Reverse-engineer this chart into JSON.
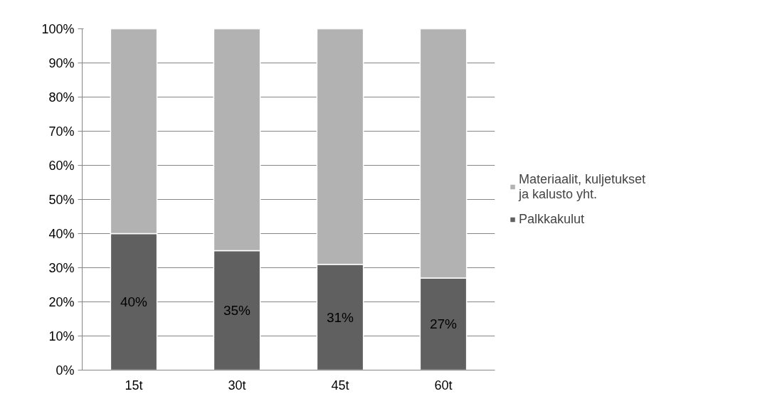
{
  "chart_data": {
    "type": "bar",
    "stacked": true,
    "categories": [
      "15t",
      "30t",
      "45t",
      "60t"
    ],
    "series": [
      {
        "name": "Palkkakulut",
        "color": "#606060",
        "values": [
          40,
          35,
          31,
          27
        ],
        "value_labels": [
          "40%",
          "35%",
          "31%",
          "27%"
        ]
      },
      {
        "name": "Materiaalit, kuljetukset ja kalusto yht.",
        "color": "#b2b2b2",
        "values": [
          60,
          65,
          69,
          73
        ]
      }
    ],
    "ylim": [
      0,
      100
    ],
    "yticks": [
      {
        "value": 0,
        "label": "0%"
      },
      {
        "value": 10,
        "label": "10%"
      },
      {
        "value": 20,
        "label": "20%"
      },
      {
        "value": 30,
        "label": "30%"
      },
      {
        "value": 40,
        "label": "40%"
      },
      {
        "value": 50,
        "label": "50%"
      },
      {
        "value": 60,
        "label": "60%"
      },
      {
        "value": 70,
        "label": "70%"
      },
      {
        "value": 80,
        "label": "80%"
      },
      {
        "value": 90,
        "label": "90%"
      },
      {
        "value": 100,
        "label": "100%"
      }
    ],
    "grid": "y",
    "legend": "right"
  }
}
